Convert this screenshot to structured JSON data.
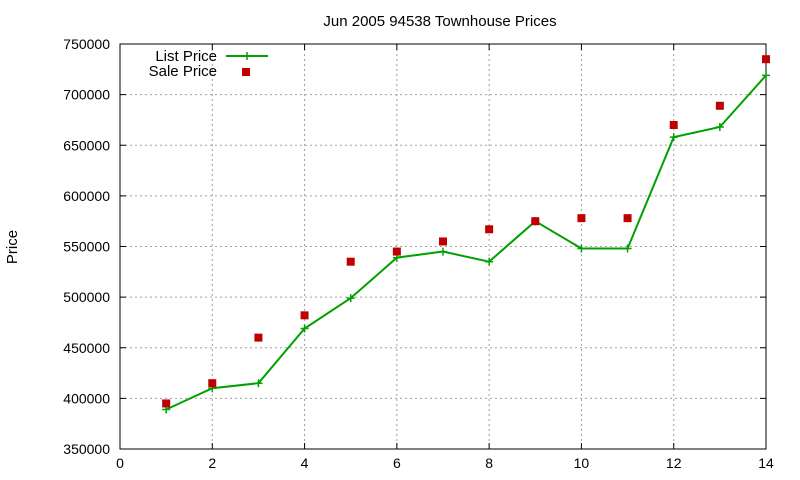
{
  "chart_data": {
    "type": "line",
    "title": "Jun 2005 94538 Townhouse Prices",
    "xlabel": "",
    "ylabel": "Price",
    "xlim": [
      0,
      14
    ],
    "ylim": [
      350000,
      750000
    ],
    "x_ticks": [
      0,
      2,
      4,
      6,
      8,
      10,
      12,
      14
    ],
    "y_ticks": [
      350000,
      400000,
      450000,
      500000,
      550000,
      600000,
      650000,
      700000,
      750000
    ],
    "grid": true,
    "legend_position": "top-left",
    "series": [
      {
        "name": "List Price",
        "style": "linespoints",
        "marker": "plus",
        "color": "#00a000",
        "x": [
          1,
          2,
          3,
          4,
          5,
          6,
          7,
          8,
          9,
          10,
          11,
          12,
          13,
          14
        ],
        "y": [
          389000,
          410000,
          415000,
          469000,
          499000,
          539000,
          545000,
          535000,
          575000,
          548000,
          548000,
          658000,
          668000,
          719000
        ]
      },
      {
        "name": "Sale Price",
        "style": "points",
        "marker": "square",
        "color": "#c00000",
        "x": [
          1,
          2,
          3,
          4,
          5,
          6,
          7,
          8,
          9,
          10,
          11,
          12,
          13,
          14
        ],
        "y": [
          395000,
          415000,
          460000,
          482000,
          535000,
          545000,
          555000,
          567000,
          575000,
          578000,
          578000,
          670000,
          689000,
          735000
        ]
      }
    ]
  }
}
